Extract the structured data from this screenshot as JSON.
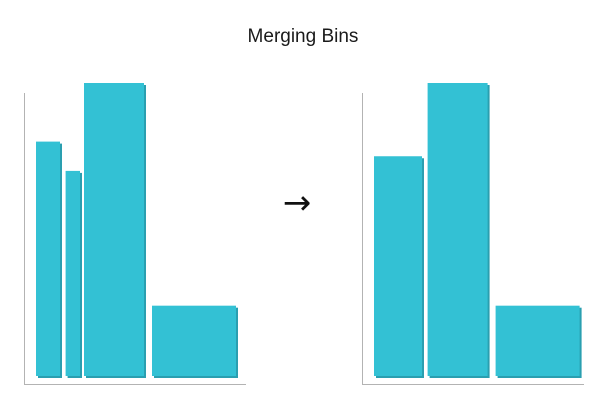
{
  "title": "Merging Bins",
  "arrow_glyph": "→",
  "colors": {
    "bar_fill": "#33c1d4",
    "bar_shadow": "#2a9fb0",
    "axis": "#b3b3b3",
    "title": "#1a1a1a"
  },
  "chart_data": [
    {
      "type": "bar",
      "variant": "histogram-before-merge",
      "title": "",
      "xlabel": "",
      "ylabel": "",
      "ylim": [
        0,
        1
      ],
      "bins": [
        {
          "x0": 0.0,
          "x1": 0.3,
          "value": 0.8
        },
        {
          "x0": 0.37,
          "x1": 0.55,
          "value": 0.7
        },
        {
          "x0": 0.6,
          "x1": 1.35,
          "value": 1.0
        },
        {
          "x0": 1.45,
          "x1": 2.5,
          "value": 0.24
        }
      ]
    },
    {
      "type": "bar",
      "variant": "histogram-after-merge",
      "title": "",
      "xlabel": "",
      "ylabel": "",
      "ylim": [
        0,
        1
      ],
      "bins": [
        {
          "x0": 0.0,
          "x1": 0.6,
          "value": 0.75
        },
        {
          "x0": 0.67,
          "x1": 1.42,
          "value": 1.0
        },
        {
          "x0": 1.52,
          "x1": 2.57,
          "value": 0.24
        }
      ]
    }
  ]
}
